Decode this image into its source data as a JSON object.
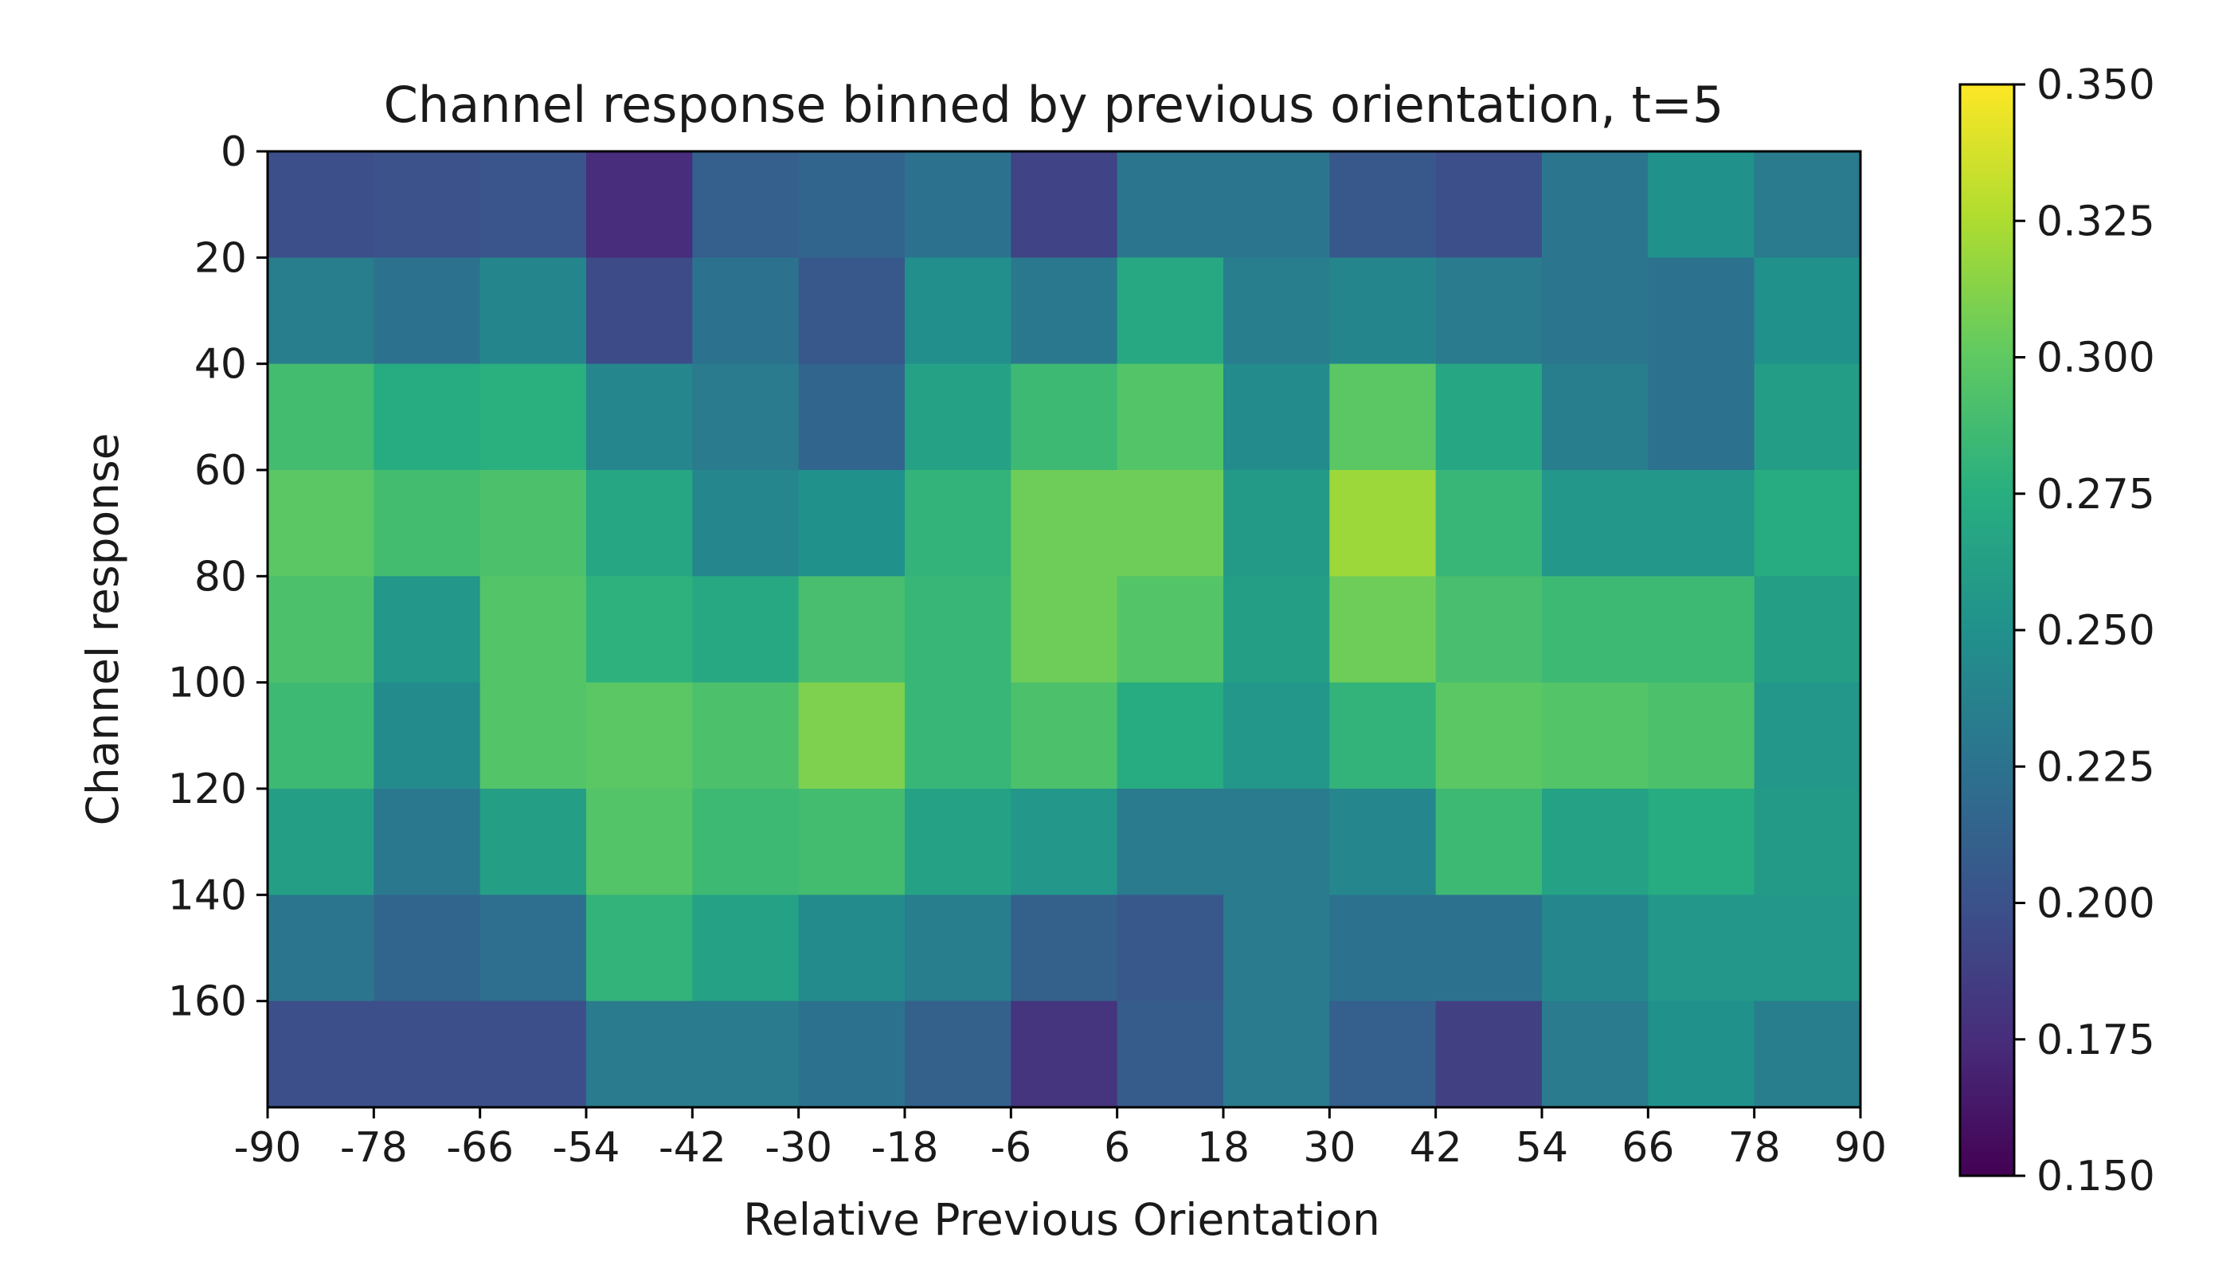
{
  "chart_data": {
    "type": "heatmap",
    "title": "Channel response binned by previous orientation, t=5",
    "xlabel": "Relative Previous Orientation",
    "ylabel": "Channel response",
    "x_ticks": [
      "-90",
      "-78",
      "-66",
      "-54",
      "-42",
      "-30",
      "-18",
      "-6",
      "6",
      "18",
      "30",
      "42",
      "54",
      "66",
      "78",
      "90"
    ],
    "y_ticks": [
      "0",
      "20",
      "40",
      "60",
      "80",
      "100",
      "120",
      "140",
      "160"
    ],
    "xlim": [
      -90,
      90
    ],
    "ylim": [
      0,
      180
    ],
    "y_inverted": true,
    "x_bin_edges": [
      -90,
      -78,
      -66,
      -54,
      -42,
      -30,
      -18,
      -6,
      6,
      18,
      30,
      42,
      54,
      66,
      78,
      90
    ],
    "y_bin_edges": [
      0,
      20,
      40,
      60,
      80,
      100,
      120,
      140,
      160,
      180
    ],
    "colormap": "viridis",
    "colorbar": {
      "min": 0.15,
      "max": 0.35,
      "ticks": [
        "0.150",
        "0.175",
        "0.200",
        "0.225",
        "0.250",
        "0.275",
        "0.300",
        "0.325",
        "0.350"
      ]
    },
    "values": [
      [
        0.198,
        0.2,
        0.202,
        0.175,
        0.21,
        0.215,
        0.225,
        0.19,
        0.228,
        0.228,
        0.205,
        0.198,
        0.228,
        0.25,
        0.232
      ],
      [
        0.235,
        0.225,
        0.24,
        0.195,
        0.225,
        0.205,
        0.248,
        0.23,
        0.27,
        0.235,
        0.24,
        0.232,
        0.228,
        0.225,
        0.25
      ],
      [
        0.288,
        0.272,
        0.276,
        0.242,
        0.232,
        0.215,
        0.265,
        0.285,
        0.295,
        0.245,
        0.298,
        0.268,
        0.235,
        0.225,
        0.26
      ],
      [
        0.298,
        0.288,
        0.292,
        0.268,
        0.242,
        0.25,
        0.28,
        0.305,
        0.305,
        0.258,
        0.32,
        0.282,
        0.255,
        0.255,
        0.272
      ],
      [
        0.292,
        0.255,
        0.295,
        0.278,
        0.27,
        0.29,
        0.282,
        0.305,
        0.295,
        0.262,
        0.305,
        0.29,
        0.285,
        0.285,
        0.262
      ],
      [
        0.285,
        0.245,
        0.295,
        0.298,
        0.292,
        0.31,
        0.282,
        0.292,
        0.272,
        0.255,
        0.28,
        0.298,
        0.295,
        0.292,
        0.255
      ],
      [
        0.262,
        0.23,
        0.262,
        0.295,
        0.285,
        0.288,
        0.265,
        0.255,
        0.232,
        0.232,
        0.242,
        0.285,
        0.265,
        0.272,
        0.258
      ],
      [
        0.228,
        0.215,
        0.222,
        0.28,
        0.265,
        0.245,
        0.235,
        0.212,
        0.205,
        0.232,
        0.225,
        0.225,
        0.242,
        0.255,
        0.255
      ],
      [
        0.198,
        0.198,
        0.198,
        0.232,
        0.232,
        0.225,
        0.212,
        0.18,
        0.208,
        0.232,
        0.21,
        0.188,
        0.232,
        0.25,
        0.235
      ]
    ]
  }
}
